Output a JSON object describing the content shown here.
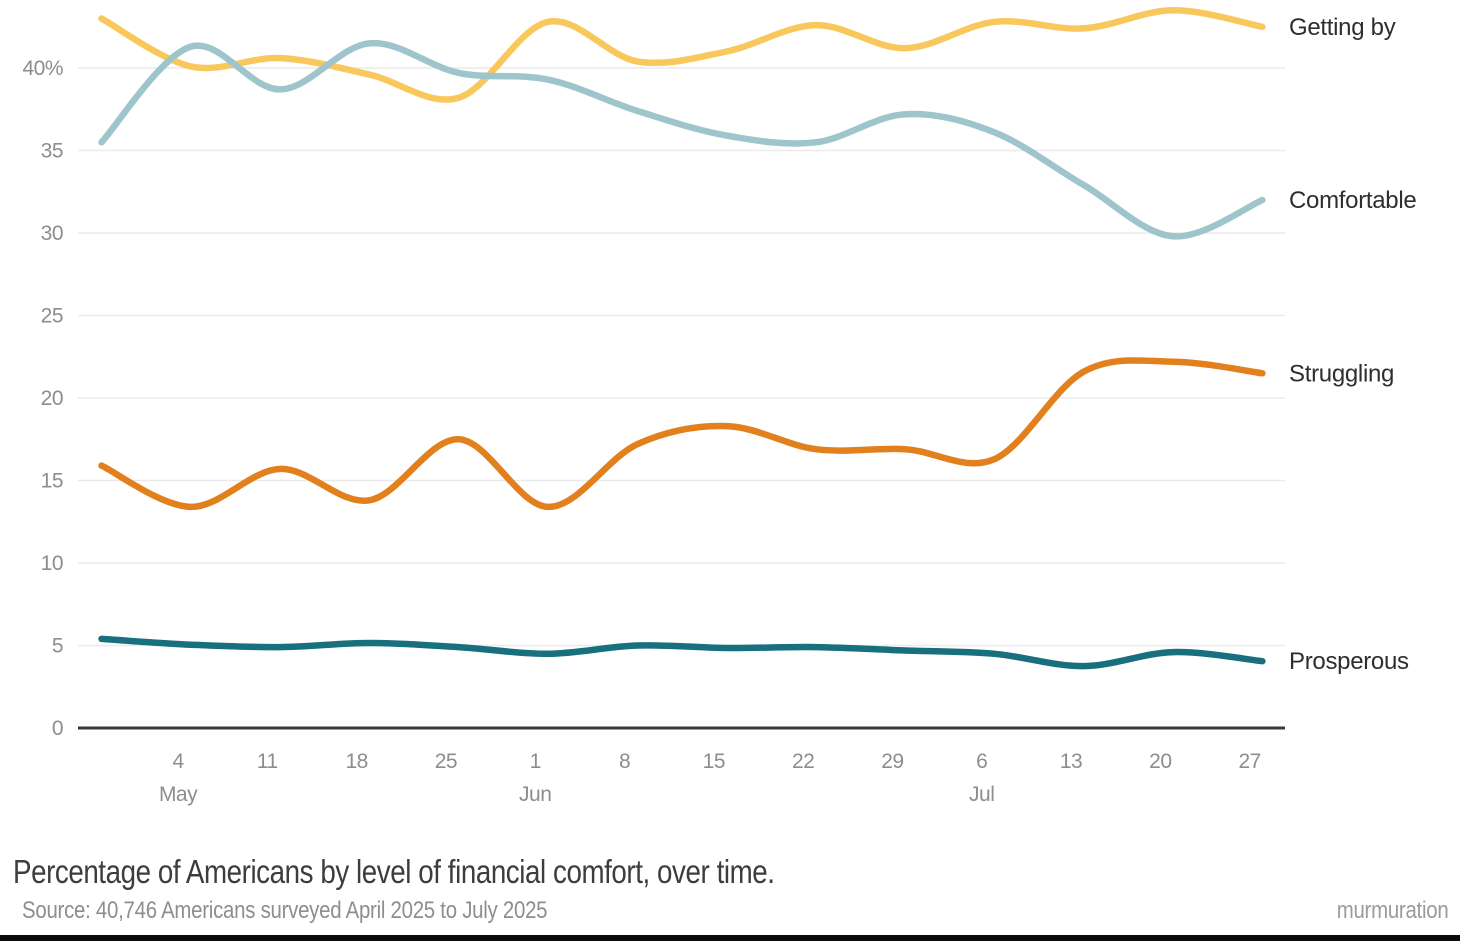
{
  "chart_data": {
    "type": "line",
    "title": "Percentage of Americans by level of financial comfort, over time.",
    "source": "Source: 40,746 Americans surveyed April 2025 to July 2025",
    "branding": "murmuration",
    "grid": "horizontal-only",
    "legend": "direct-labels-right-edge",
    "ylim": [
      0,
      43.5
    ],
    "y_unit_suffix_on_top_tick": "%",
    "x_point_dates": [
      "Apr 28",
      "May 5",
      "May 12",
      "May 19",
      "May 26",
      "Jun 2",
      "Jun 9",
      "Jun 16",
      "Jun 23",
      "Jun 30",
      "Jul 7",
      "Jul 14",
      "Jul 21",
      "Jul 28"
    ],
    "y_ticks": [
      {
        "label": "0",
        "value": 0
      },
      {
        "label": "5",
        "value": 5
      },
      {
        "label": "10",
        "value": 10
      },
      {
        "label": "15",
        "value": 15
      },
      {
        "label": "20",
        "value": 20
      },
      {
        "label": "25",
        "value": 25
      },
      {
        "label": "30",
        "value": 30
      },
      {
        "label": "35",
        "value": 35
      },
      {
        "label": "40%",
        "value": 40
      }
    ],
    "x_ticks": [
      {
        "label": "4",
        "days": 6
      },
      {
        "label": "11",
        "days": 13
      },
      {
        "label": "18",
        "days": 20
      },
      {
        "label": "25",
        "days": 27
      },
      {
        "label": "1",
        "days": 34
      },
      {
        "label": "8",
        "days": 41
      },
      {
        "label": "15",
        "days": 48
      },
      {
        "label": "22",
        "days": 55
      },
      {
        "label": "29",
        "days": 62
      },
      {
        "label": "6",
        "days": 69
      },
      {
        "label": "13",
        "days": 76
      },
      {
        "label": "20",
        "days": 83
      },
      {
        "label": "27",
        "days": 90
      }
    ],
    "month_labels": [
      {
        "label": "May",
        "days": 6
      },
      {
        "label": "Jun",
        "days": 34
      },
      {
        "label": "Jul",
        "days": 69
      }
    ],
    "series": [
      {
        "name": "Getting by",
        "color": "#F9C85C",
        "values": [
          43.0,
          40.1,
          40.6,
          39.6,
          38.2,
          42.8,
          40.4,
          41.0,
          42.6,
          41.2,
          42.8,
          42.4,
          43.5,
          42.5
        ]
      },
      {
        "name": "Comfortable",
        "color": "#9FC5CC",
        "values": [
          35.5,
          41.3,
          38.7,
          41.5,
          39.7,
          39.3,
          37.4,
          35.9,
          35.5,
          37.2,
          36.1,
          32.9,
          29.8,
          32.0
        ]
      },
      {
        "name": "Struggling",
        "color": "#E2801E",
        "values": [
          15.9,
          13.4,
          15.7,
          13.8,
          17.5,
          13.4,
          17.2,
          18.3,
          16.9,
          16.9,
          16.3,
          21.6,
          22.2,
          21.5
        ]
      },
      {
        "name": "Prosperous",
        "color": "#186F7E",
        "values": [
          5.4,
          5.05,
          4.9,
          5.15,
          4.9,
          4.5,
          5.0,
          4.85,
          4.9,
          4.7,
          4.5,
          3.75,
          4.6,
          4.05
        ]
      }
    ],
    "style_colors": {
      "gridline": "#EAEAEA",
      "axis": "#3A3A3A",
      "tick_text": "#8d8d8d",
      "series_label_text": "#2e2e2e"
    }
  }
}
